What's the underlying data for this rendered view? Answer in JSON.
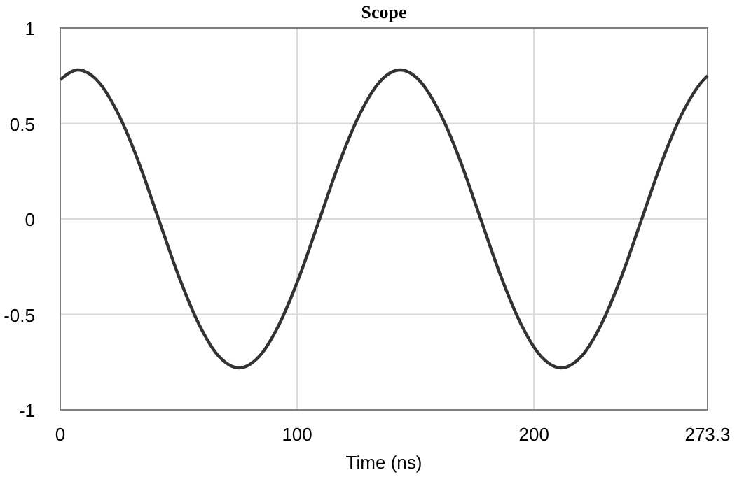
{
  "chart_data": {
    "type": "line",
    "title": "Scope",
    "xlabel": "Time (ns)",
    "x": [
      0,
      7.5,
      16,
      24.5,
      33,
      41.5,
      50,
      58.5,
      67,
      75.5,
      84,
      92.5,
      101,
      109.5,
      118,
      126.5,
      135,
      143.5,
      152,
      160.5,
      169,
      177.5,
      186,
      194.5,
      203,
      211.5,
      220,
      228.5,
      237,
      245.5,
      254,
      262.5,
      271,
      273.3
    ],
    "series": [
      {
        "color": "#333333",
        "values": [
          0.73,
          0.78,
          0.72,
          0.55,
          0.3,
          0,
          -0.3,
          -0.55,
          -0.72,
          -0.78,
          -0.72,
          -0.55,
          -0.3,
          0,
          0.3,
          0.55,
          0.72,
          0.78,
          0.72,
          0.55,
          0.3,
          0,
          -0.3,
          -0.55,
          -0.72,
          -0.78,
          -0.72,
          -0.55,
          -0.3,
          0,
          0.3,
          0.55,
          0.72,
          0.75
        ]
      }
    ],
    "xlim": [
      0,
      273.3
    ],
    "xticks": [
      0,
      100,
      200,
      273.3
    ],
    "ylim": [
      -1,
      1
    ],
    "yticks": [
      -1,
      -0.5,
      0,
      0.5,
      1
    ],
    "grid": true,
    "line_style": "solid",
    "marker": "none"
  }
}
